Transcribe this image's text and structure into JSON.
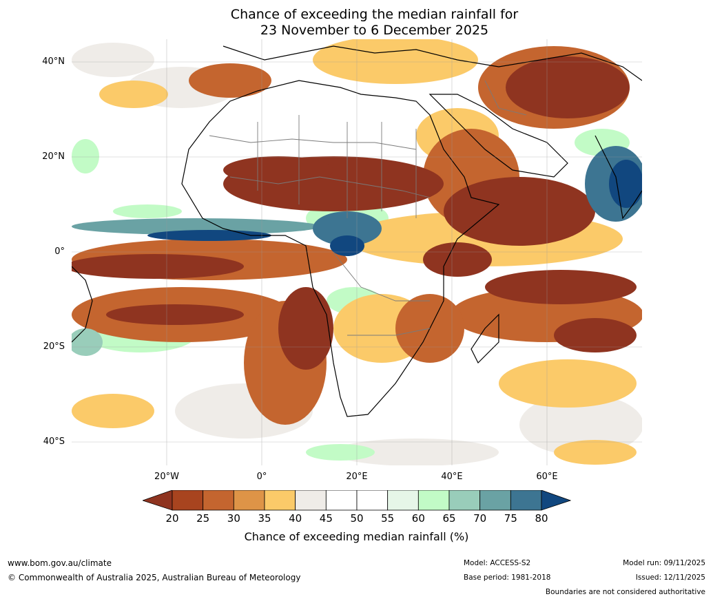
{
  "title": {
    "line1": "Chance of exceeding the median rainfall for",
    "line2": "23 November to 6 December 2025"
  },
  "map": {
    "lat_ticks": [
      "40°N",
      "20°N",
      "0°",
      "20°S",
      "40°S"
    ],
    "lon_ticks": [
      "20°W",
      "0°",
      "20°E",
      "40°E",
      "60°E"
    ]
  },
  "colorbar": {
    "ticks": [
      "20",
      "25",
      "30",
      "35",
      "40",
      "45",
      "50",
      "55",
      "60",
      "65",
      "70",
      "75",
      "80"
    ],
    "colors": [
      "#8f3420",
      "#a8441f",
      "#c4652f",
      "#de9447",
      "#fbca69",
      "#efece8",
      "#ffffff",
      "#ffffff",
      "#e6f6e8",
      "#c2fbc6",
      "#99cdba",
      "#6aa2a4",
      "#3d7592",
      "#11477f"
    ],
    "label": "Chance of exceeding median rainfall (%)"
  },
  "footer": {
    "website": "www.bom.gov.au/climate",
    "copyright": "© Commonwealth of Australia 2025, Australian Bureau of Meteorology",
    "model": "Model: ACCESS-S2",
    "base_period": "Base period: 1981-2018",
    "model_run": "Model run: 09/11/2025",
    "issued": "Issued: 12/11/2025",
    "disclaimer": "Boundaries are not considered authoritative"
  }
}
